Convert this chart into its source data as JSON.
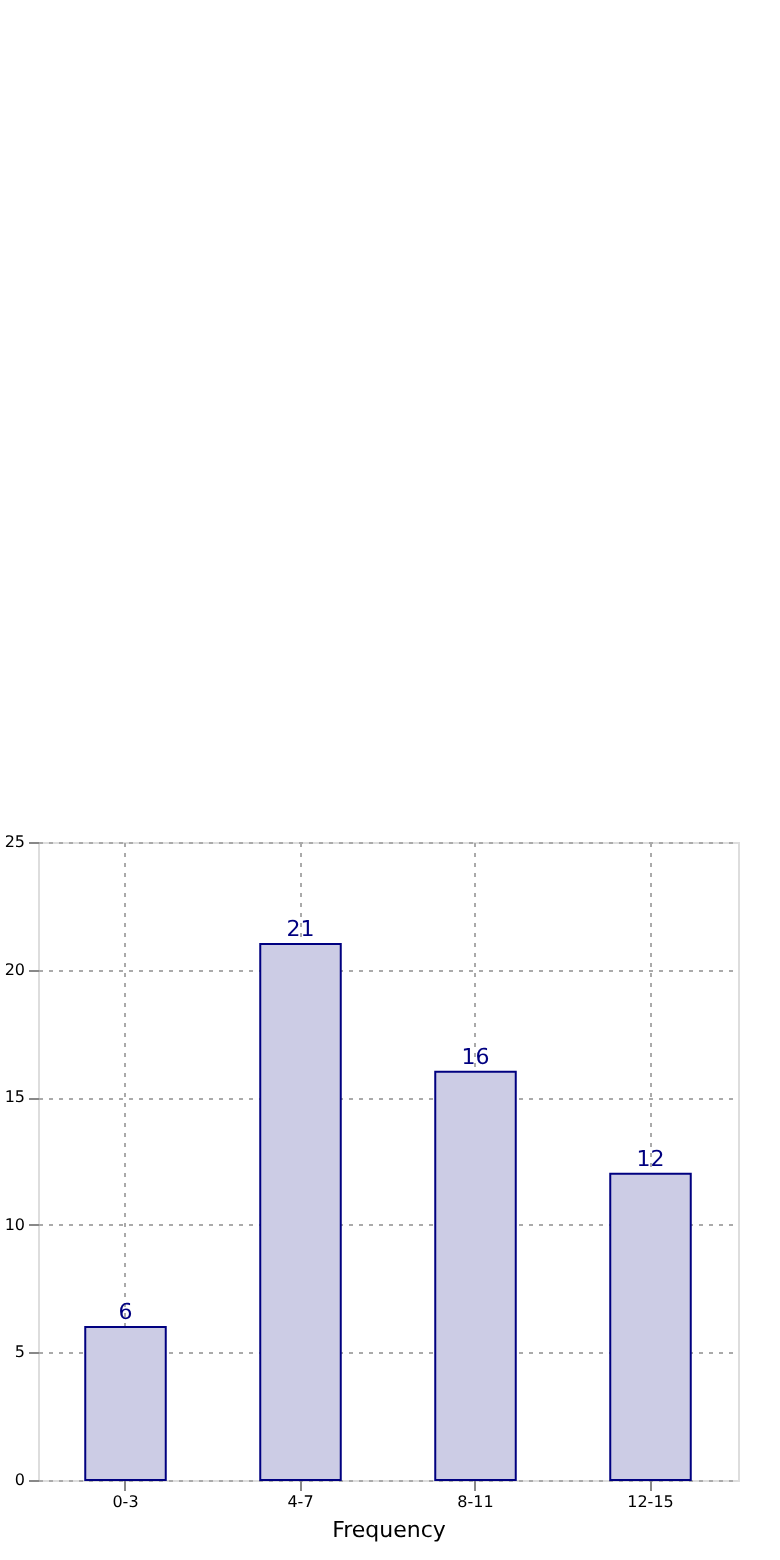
{
  "chart_data": {
    "type": "bar",
    "xlabel": "Frequency",
    "categories": [
      "0-3",
      "4-7",
      "8-11",
      "12-15"
    ],
    "values": [
      6,
      21,
      16,
      12
    ],
    "color": "#ccccE5",
    "ylim": [
      0,
      25
    ],
    "yticks": [
      0,
      5,
      10,
      15,
      20,
      25
    ],
    "grid": true,
    "data_labels": true
  }
}
